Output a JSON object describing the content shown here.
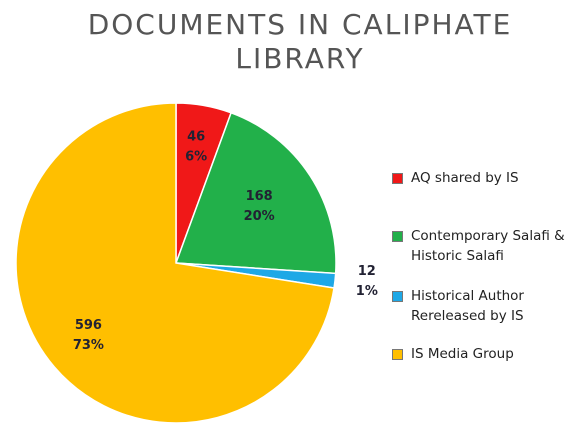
{
  "chart_data": {
    "type": "pie",
    "title": "DOCUMENTS IN CALIPHATE LIBRARY",
    "categories": [
      "AQ shared by IS",
      "Contemporary Salafi & Historic Salafi",
      "Historical Author Rereleased by IS",
      "IS Media Group"
    ],
    "values": [
      46,
      168,
      12,
      596
    ],
    "percents": [
      6,
      20,
      1,
      73
    ],
    "percent_labels": [
      "6%",
      "20%",
      "1%",
      "73%"
    ],
    "colors": [
      "#f01818",
      "#22b04a",
      "#1ea8e6",
      "#ffbf00"
    ],
    "legend": "right"
  }
}
